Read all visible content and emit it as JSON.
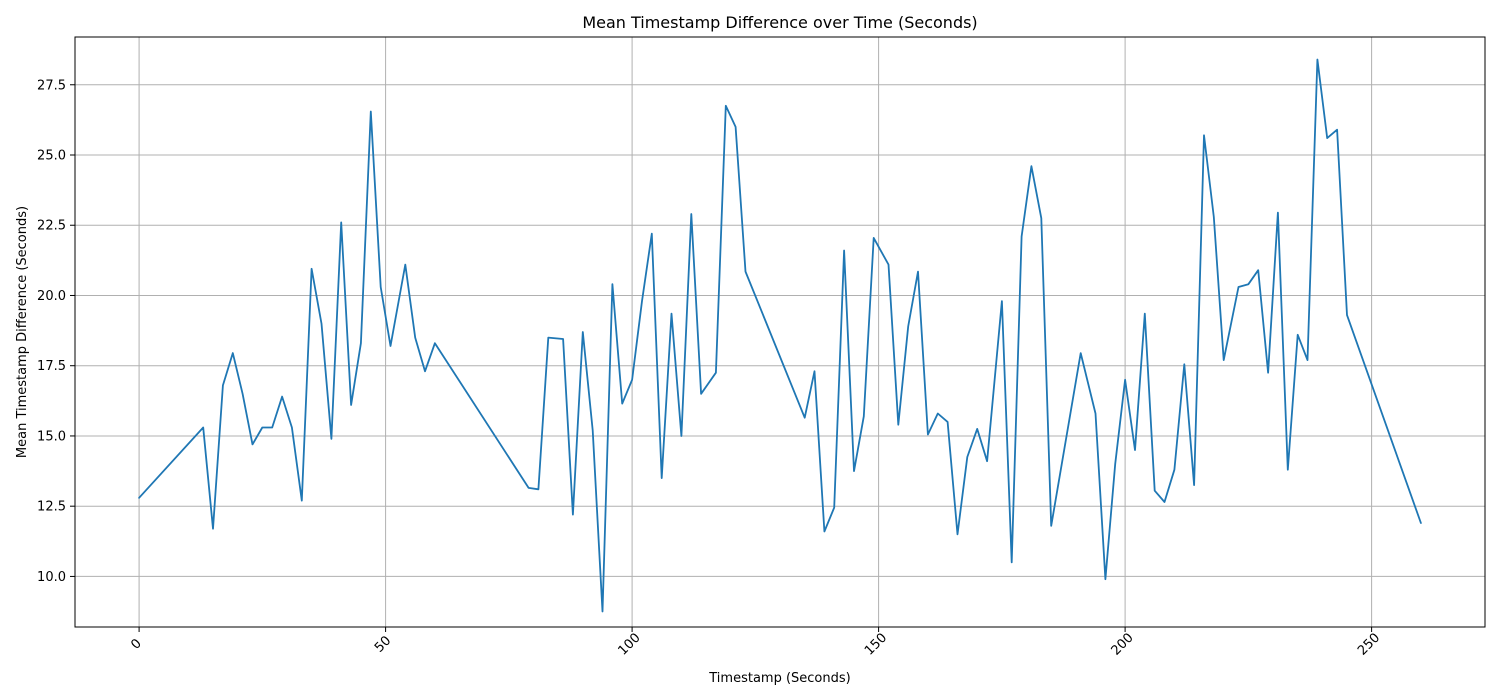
{
  "chart_data": {
    "type": "line",
    "title": "Mean Timestamp Difference over Time (Seconds)",
    "xlabel": "Timestamp (Seconds)",
    "ylabel": "Mean Timestamp Difference (Seconds)",
    "xlim": [
      -13,
      273
    ],
    "ylim": [
      8.2,
      29.2
    ],
    "grid": true,
    "x_ticks": [
      0,
      50,
      100,
      150,
      200,
      250
    ],
    "x_tick_labels": [
      "0",
      "50",
      "100",
      "150",
      "200",
      "250"
    ],
    "y_ticks": [
      10.0,
      12.5,
      15.0,
      17.5,
      20.0,
      22.5,
      25.0,
      27.5
    ],
    "y_tick_labels": [
      "10.0",
      "12.5",
      "15.0",
      "17.5",
      "20.0",
      "22.5",
      "25.0",
      "27.5"
    ],
    "series": [
      {
        "color": "#1f77b4",
        "x": [
          0,
          13,
          15,
          17,
          19,
          21,
          23,
          25,
          27,
          29,
          31,
          33,
          35,
          37,
          39,
          41,
          43,
          45,
          47,
          49,
          51,
          54,
          56,
          58,
          60,
          79,
          81,
          83,
          86,
          88,
          90,
          92,
          94,
          96,
          98,
          100,
          102,
          104,
          106,
          108,
          110,
          112,
          114,
          117,
          119,
          121,
          123,
          135,
          137,
          139,
          141,
          143,
          145,
          147,
          149,
          152,
          154,
          156,
          158,
          160,
          162,
          164,
          166,
          168,
          170,
          172,
          175,
          177,
          179,
          181,
          183,
          185,
          191,
          194,
          196,
          198,
          200,
          202,
          204,
          206,
          208,
          210,
          212,
          214,
          216,
          218,
          220,
          223,
          225,
          227,
          229,
          231,
          233,
          235,
          237,
          239,
          241,
          243,
          245,
          260
        ],
        "y": [
          12.8,
          15.3,
          11.7,
          16.8,
          17.95,
          16.5,
          14.7,
          15.3,
          15.3,
          16.4,
          15.3,
          12.7,
          20.95,
          19.0,
          14.9,
          22.6,
          16.1,
          18.3,
          26.55,
          20.3,
          18.2,
          21.1,
          18.5,
          17.3,
          18.3,
          13.15,
          13.1,
          18.5,
          18.45,
          12.2,
          18.7,
          15.2,
          8.75,
          20.4,
          16.15,
          17.0,
          19.8,
          22.2,
          13.5,
          19.35,
          15.0,
          22.9,
          16.5,
          17.25,
          26.75,
          26.0,
          20.85,
          15.65,
          17.3,
          11.6,
          12.45,
          21.6,
          13.75,
          15.7,
          22.05,
          21.1,
          15.4,
          18.9,
          20.85,
          15.05,
          15.8,
          15.5,
          11.5,
          14.25,
          15.25,
          14.1,
          19.8,
          10.5,
          22.1,
          24.6,
          22.75,
          11.8,
          17.95,
          15.8,
          9.9,
          14.0,
          17.0,
          14.5,
          19.35,
          13.05,
          12.65,
          13.8,
          17.55,
          13.25,
          25.7,
          22.8,
          17.7,
          20.3,
          20.4,
          20.9,
          17.25,
          22.95,
          13.8,
          18.6,
          17.7,
          28.4,
          25.6,
          25.9,
          19.3,
          11.9
        ]
      }
    ]
  }
}
